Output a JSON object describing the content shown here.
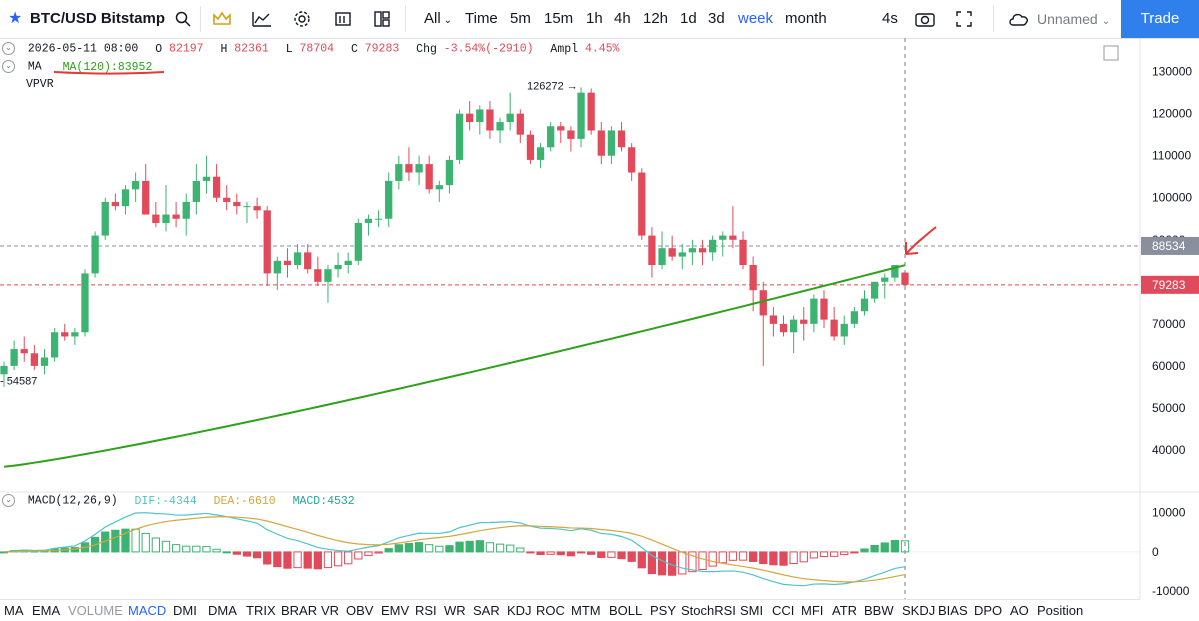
{
  "toolbar": {
    "symbol": "BTC/USD Bitstamp",
    "all_label": "All",
    "intervals": [
      "Time",
      "5m",
      "15m",
      "1h",
      "4h",
      "12h",
      "1d",
      "3d",
      "week",
      "month"
    ],
    "active_interval": "week",
    "refresh_label": "4s",
    "layout_name": "Unnamed",
    "trade_label": "Trade"
  },
  "legend": {
    "date": "2026-05-11 08:00",
    "open_label": "O",
    "open": "82197",
    "high_label": "H",
    "high": "82361",
    "low_label": "L",
    "low": "78704",
    "close_label": "C",
    "close": "79283",
    "chg_label": "Chg",
    "chg": "-3.54%(-2910)",
    "ampl_label": "Ampl",
    "ampl": "4.45%",
    "ma_label": "MA",
    "ma_value": "MA(120):83952",
    "vpvr_label": "VPVR"
  },
  "macd_legend": {
    "title": "MACD(12,26,9)",
    "dif": "DIF:-4344",
    "dea": "DEA:-6610",
    "macd": "MACD:4532"
  },
  "indicator_tabs": [
    "MA",
    "EMA",
    "VOLUME",
    "MACD",
    "DMI",
    "DMA",
    "TRIX",
    "BRAR",
    "VR",
    "OBV",
    "EMV",
    "RSI",
    "WR",
    "SAR",
    "KDJ",
    "ROC",
    "MTM",
    "BOLL",
    "PSY",
    "StochRSI",
    "SMI",
    "CCI",
    "MFI",
    "ATR",
    "BBW",
    "SKDJ",
    "BIAS",
    "DPO",
    "AO",
    "Position"
  ],
  "active_tab": "MACD",
  "muted_tab": "VOLUME",
  "colors": {
    "up": "#3cb371",
    "down": "#e04a5a",
    "ma": "#2ea01a",
    "dif": "#4fc3c8",
    "dea": "#d4a640",
    "accent": "#2962ff"
  },
  "chart_data": [
    {
      "type": "candlestick",
      "title": "BTC/USD Bitstamp",
      "interval": "week",
      "ylim": [
        30000,
        138000
      ],
      "yticks": [
        40000,
        50000,
        60000,
        70000,
        80000,
        90000,
        100000,
        110000,
        120000,
        130000
      ],
      "price_labels": {
        "last": "79283",
        "reference": "88534"
      },
      "annotations": {
        "max_label": "126272",
        "min_label": "54587"
      },
      "reference_lines": [
        88534,
        79283
      ],
      "ohlc": [
        [
          58000,
          61000,
          55000,
          60000
        ],
        [
          60000,
          66000,
          59000,
          64000
        ],
        [
          64000,
          67000,
          61000,
          63000
        ],
        [
          63000,
          65000,
          59000,
          60000
        ],
        [
          60000,
          64000,
          58000,
          62000
        ],
        [
          62000,
          69000,
          61000,
          68000
        ],
        [
          68000,
          70000,
          66000,
          67000
        ],
        [
          67000,
          69000,
          65000,
          68000
        ],
        [
          68000,
          83000,
          67000,
          82000
        ],
        [
          82000,
          92000,
          81000,
          91000
        ],
        [
          91000,
          100000,
          90000,
          99000
        ],
        [
          99000,
          101000,
          97000,
          98000
        ],
        [
          98000,
          103000,
          96000,
          102000
        ],
        [
          102000,
          106000,
          99000,
          104000
        ],
        [
          104000,
          108000,
          97000,
          96000
        ],
        [
          96000,
          99000,
          93000,
          94000
        ],
        [
          94000,
          103000,
          92000,
          96000
        ],
        [
          96000,
          99000,
          93000,
          95000
        ],
        [
          95000,
          101000,
          91000,
          99000
        ],
        [
          99000,
          108000,
          96000,
          104000
        ],
        [
          104000,
          110000,
          101000,
          105000
        ],
        [
          105000,
          108000,
          99000,
          100000
        ],
        [
          100000,
          103000,
          97000,
          99000
        ],
        [
          99000,
          101000,
          96000,
          98000
        ],
        [
          98000,
          99000,
          94000,
          98000
        ],
        [
          98000,
          100000,
          95000,
          97000
        ],
        [
          97000,
          98000,
          79000,
          82000
        ],
        [
          82000,
          86000,
          78000,
          85000
        ],
        [
          85000,
          88000,
          81000,
          84000
        ],
        [
          84000,
          89000,
          83000,
          87000
        ],
        [
          87000,
          89000,
          82000,
          83000
        ],
        [
          83000,
          86000,
          79000,
          80000
        ],
        [
          80000,
          84000,
          75000,
          83000
        ],
        [
          83000,
          87000,
          81000,
          84000
        ],
        [
          84000,
          87000,
          82000,
          85000
        ],
        [
          85000,
          95000,
          84000,
          94000
        ],
        [
          94000,
          96000,
          91000,
          95000
        ],
        [
          95000,
          97000,
          93000,
          95000
        ],
        [
          95000,
          106000,
          93000,
          104000
        ],
        [
          104000,
          110000,
          102000,
          108000
        ],
        [
          108000,
          112000,
          104000,
          106000
        ],
        [
          106000,
          110000,
          103000,
          108000
        ],
        [
          108000,
          110000,
          101000,
          102000
        ],
        [
          102000,
          104000,
          99000,
          103000
        ],
        [
          103000,
          110000,
          101000,
          109000
        ],
        [
          109000,
          121000,
          108000,
          120000
        ],
        [
          120000,
          123000,
          116000,
          118000
        ],
        [
          118000,
          122000,
          115000,
          121000
        ],
        [
          121000,
          123000,
          114000,
          116000
        ],
        [
          116000,
          119000,
          113000,
          118000
        ],
        [
          118000,
          125000,
          116000,
          120000
        ],
        [
          120000,
          121000,
          113000,
          115000
        ],
        [
          115000,
          116000,
          108000,
          109000
        ],
        [
          109000,
          113000,
          107000,
          112000
        ],
        [
          112000,
          118000,
          111000,
          117000
        ],
        [
          117000,
          118000,
          113000,
          116000
        ],
        [
          116000,
          117000,
          111000,
          114000
        ],
        [
          114000,
          126272,
          112000,
          125000
        ],
        [
          125000,
          126000,
          115000,
          116000
        ],
        [
          116000,
          118000,
          108000,
          110000
        ],
        [
          110000,
          117000,
          108000,
          116000
        ],
        [
          116000,
          118000,
          111000,
          112000
        ],
        [
          112000,
          113000,
          104000,
          106000
        ],
        [
          106000,
          107000,
          90000,
          91000
        ],
        [
          91000,
          93000,
          81000,
          84000
        ],
        [
          84000,
          92000,
          83000,
          88000
        ],
        [
          88000,
          91000,
          85000,
          86000
        ],
        [
          86000,
          89000,
          83000,
          87000
        ],
        [
          87000,
          90000,
          84000,
          88000
        ],
        [
          88000,
          90000,
          84000,
          87000
        ],
        [
          87000,
          91000,
          85000,
          90000
        ],
        [
          90000,
          92000,
          86000,
          91000
        ],
        [
          91000,
          98000,
          88000,
          90000
        ],
        [
          90000,
          92000,
          83000,
          84000
        ],
        [
          84000,
          86000,
          73000,
          78000
        ],
        [
          78000,
          80000,
          60000,
          72000
        ],
        [
          72000,
          74000,
          67000,
          70000
        ],
        [
          70000,
          72000,
          67000,
          68000
        ],
        [
          68000,
          72000,
          63000,
          71000
        ],
        [
          71000,
          74000,
          66000,
          70000
        ],
        [
          70000,
          77000,
          68000,
          76000
        ],
        [
          76000,
          78000,
          69000,
          71000
        ],
        [
          71000,
          74000,
          66000,
          67000
        ],
        [
          67000,
          72000,
          65000,
          70000
        ],
        [
          70000,
          74000,
          69000,
          73000
        ],
        [
          73000,
          78000,
          72000,
          76000
        ],
        [
          76000,
          80000,
          75000,
          80000
        ],
        [
          80000,
          82000,
          76000,
          81000
        ],
        [
          81000,
          84000,
          80000,
          84000
        ],
        [
          82197,
          82361,
          78704,
          79283
        ]
      ],
      "ma_series": {
        "name": "MA(120)",
        "value": 83952
      }
    },
    {
      "type": "bar",
      "title": "MACD(12,26,9)",
      "ylim": [
        -12000,
        14000
      ],
      "yticks": [
        10000,
        0,
        -10000
      ],
      "dif_last": -4344,
      "dea_last": -6610,
      "macd_last": 4532
    }
  ]
}
